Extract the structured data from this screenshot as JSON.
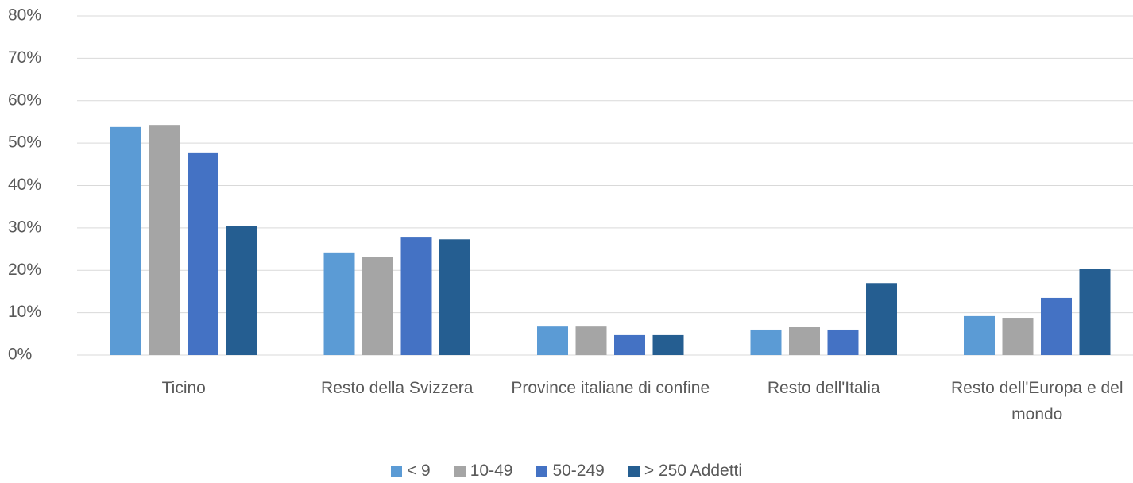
{
  "chart_data": {
    "type": "bar",
    "categories": [
      "Ticino",
      "Resto della Svizzera",
      "Province italiane di confine",
      "Resto dell'Italia",
      "Resto dell'Europa e del mondo"
    ],
    "series": [
      {
        "name": "< 9",
        "color": "#5b9bd5",
        "values": [
          53.8,
          24.2,
          6.9,
          6.0,
          9.2
        ]
      },
      {
        "name": "10-49",
        "color": "#a5a5a5",
        "values": [
          54.3,
          23.2,
          6.9,
          6.6,
          8.8
        ]
      },
      {
        "name": "50-249",
        "color": "#4472c4",
        "values": [
          47.8,
          27.9,
          4.7,
          6.0,
          13.5
        ]
      },
      {
        "name": "> 250 Addetti",
        "color": "#255e91",
        "values": [
          30.5,
          27.3,
          4.7,
          17.0,
          20.4
        ]
      }
    ],
    "ylim": [
      0,
      80
    ],
    "yticks": [
      {
        "value": 0,
        "label": "0%"
      },
      {
        "value": 10,
        "label": "10%"
      },
      {
        "value": 20,
        "label": "20%"
      },
      {
        "value": 30,
        "label": "30%"
      },
      {
        "value": 40,
        "label": "40%"
      },
      {
        "value": 50,
        "label": "50%"
      },
      {
        "value": 60,
        "label": "60%"
      },
      {
        "value": 70,
        "label": "70%"
      },
      {
        "value": 80,
        "label": "80%"
      }
    ],
    "grid": true,
    "legend": "bottom"
  }
}
